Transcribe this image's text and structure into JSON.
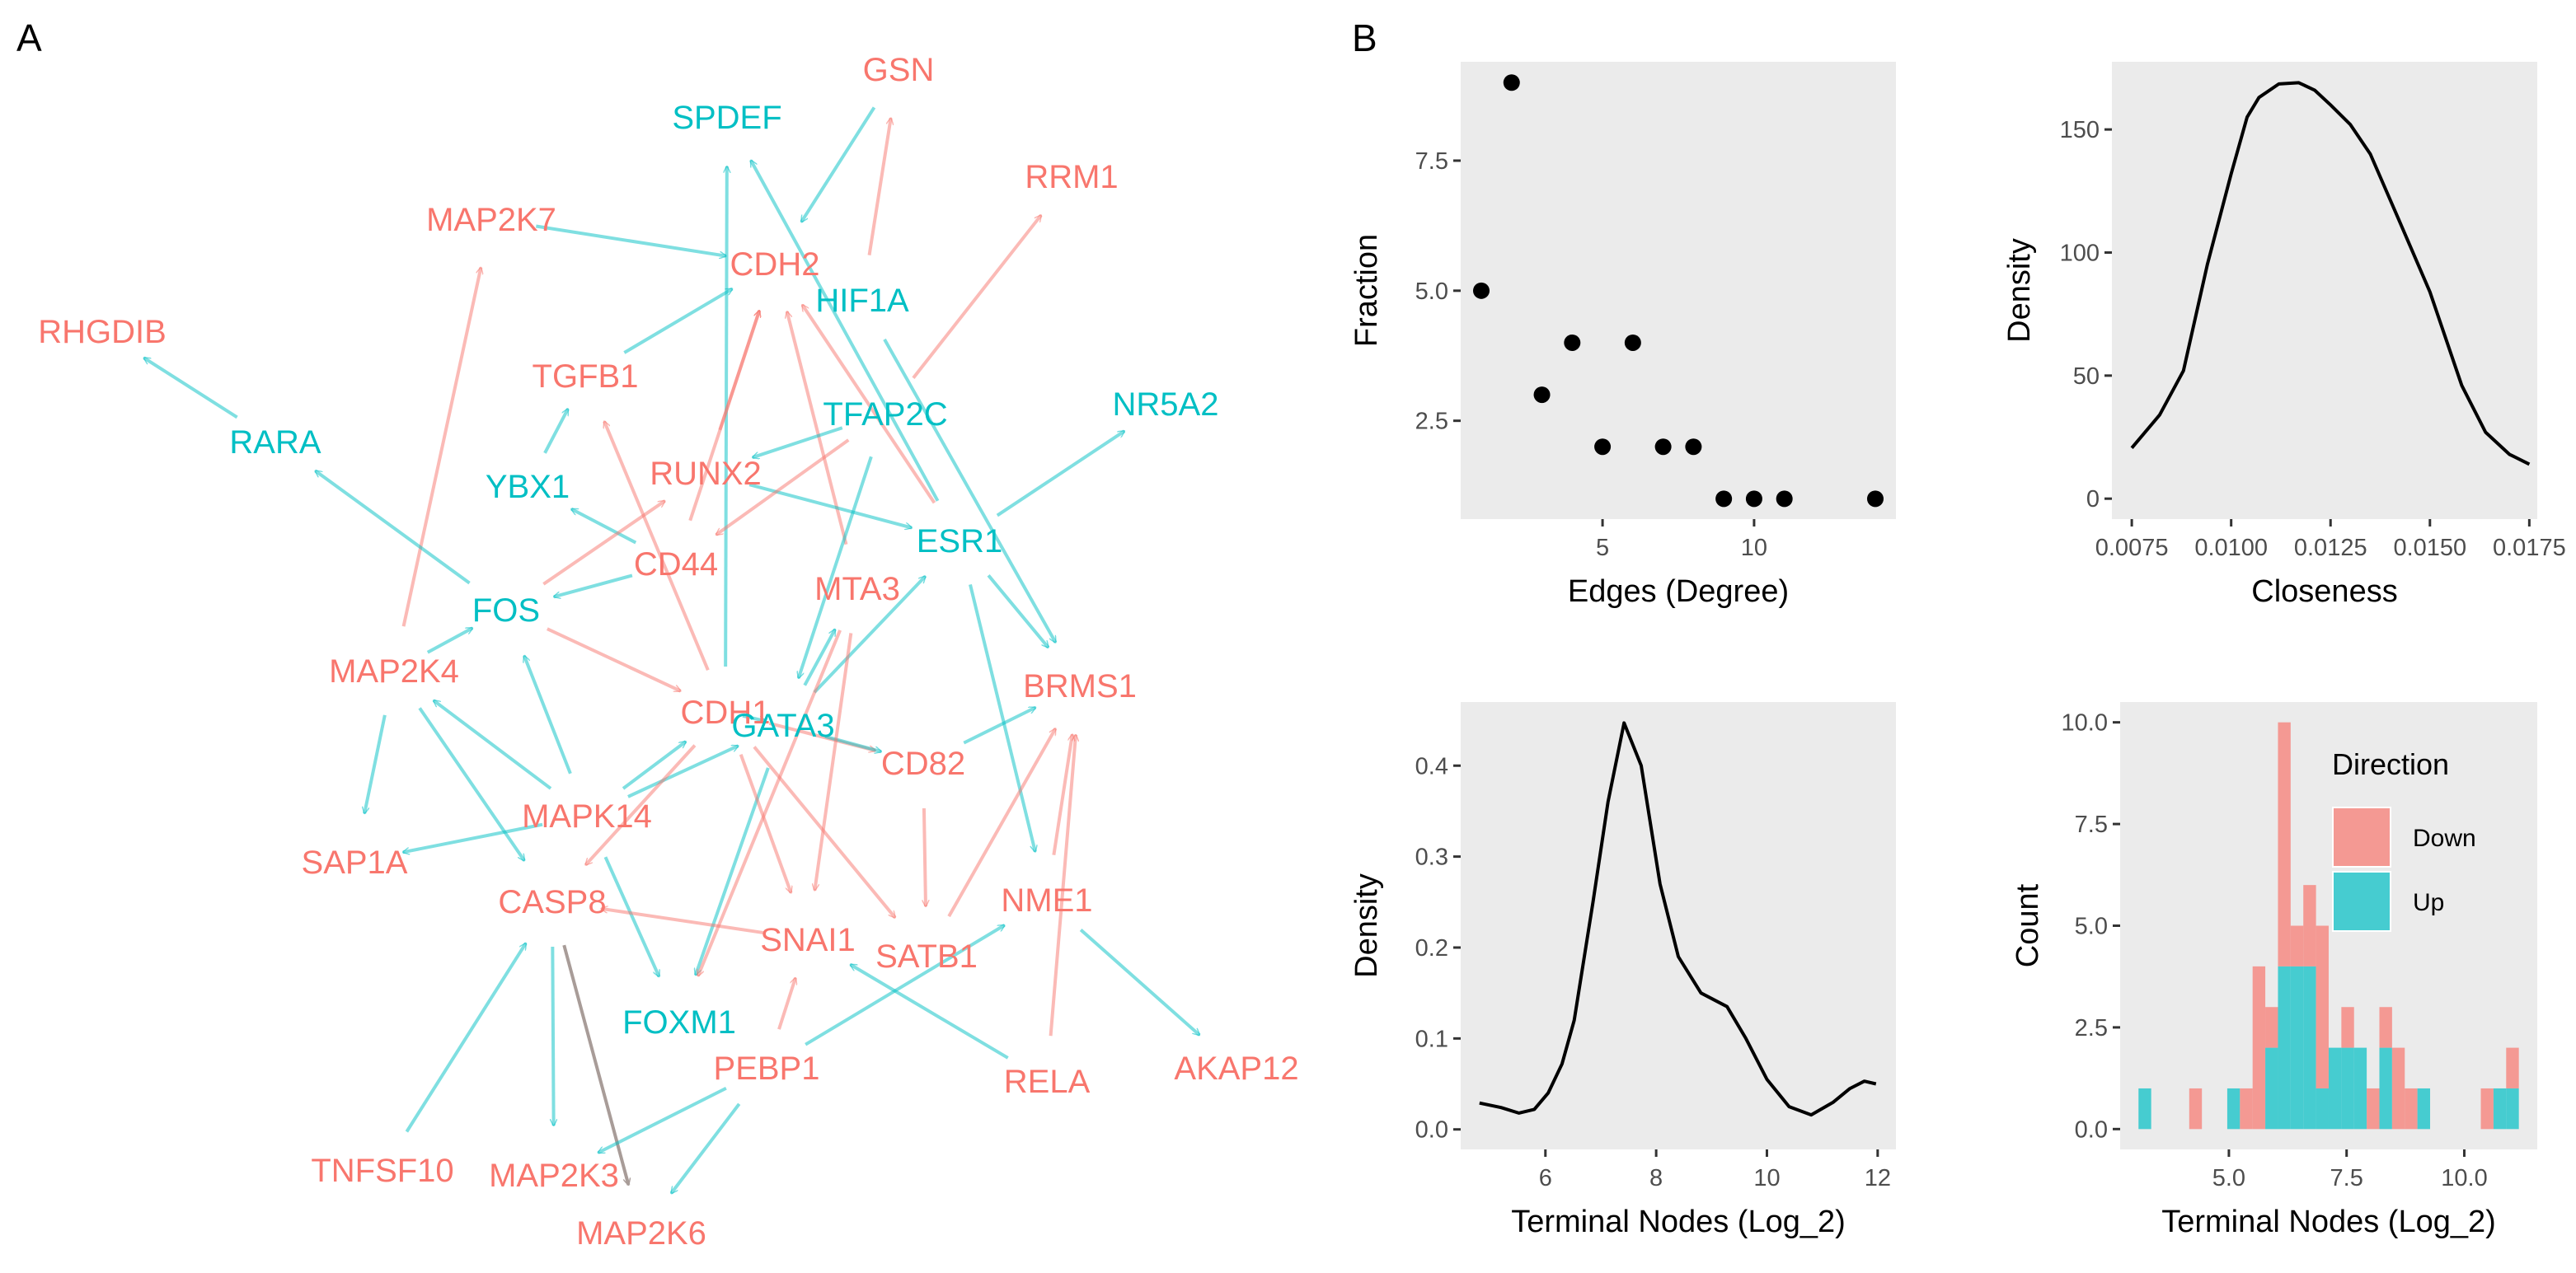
{
  "panel_labels": {
    "a": "A",
    "b": "B"
  },
  "colors": {
    "down": "#F8766D",
    "up": "#00BFC4",
    "mixed": "#A89C98",
    "panel_bg": "#EBEBEB"
  },
  "network": {
    "nodes": [
      {
        "id": "GSN",
        "dir": "down"
      },
      {
        "id": "SPDEF",
        "dir": "up"
      },
      {
        "id": "RRM1",
        "dir": "down"
      },
      {
        "id": "MAP2K7",
        "dir": "down"
      },
      {
        "id": "CDH2",
        "dir": "down"
      },
      {
        "id": "HIF1A",
        "dir": "up"
      },
      {
        "id": "RHGDIB",
        "dir": "down"
      },
      {
        "id": "TGFB1",
        "dir": "down"
      },
      {
        "id": "TFAP2C",
        "dir": "up"
      },
      {
        "id": "NR5A2",
        "dir": "up"
      },
      {
        "id": "RARA",
        "dir": "up"
      },
      {
        "id": "YBX1",
        "dir": "up"
      },
      {
        "id": "RUNX2",
        "dir": "down"
      },
      {
        "id": "ESR1",
        "dir": "up"
      },
      {
        "id": "FOS",
        "dir": "up"
      },
      {
        "id": "CD44",
        "dir": "down"
      },
      {
        "id": "MTA3",
        "dir": "down"
      },
      {
        "id": "MAP2K4",
        "dir": "down"
      },
      {
        "id": "CDH1",
        "dir": "down"
      },
      {
        "id": "GATA3",
        "dir": "up"
      },
      {
        "id": "BRMS1",
        "dir": "down"
      },
      {
        "id": "CD82",
        "dir": "down"
      },
      {
        "id": "MAPK14",
        "dir": "down"
      },
      {
        "id": "SAP1A",
        "dir": "down"
      },
      {
        "id": "CASP8",
        "dir": "down"
      },
      {
        "id": "NME1",
        "dir": "down"
      },
      {
        "id": "SNAI1",
        "dir": "down"
      },
      {
        "id": "SATB1",
        "dir": "down"
      },
      {
        "id": "FOXM1",
        "dir": "up"
      },
      {
        "id": "PEBP1",
        "dir": "down"
      },
      {
        "id": "RELA",
        "dir": "down"
      },
      {
        "id": "AKAP12",
        "dir": "down"
      },
      {
        "id": "TNFSF10",
        "dir": "down"
      },
      {
        "id": "MAP2K3",
        "dir": "down"
      },
      {
        "id": "MAP2K6",
        "dir": "down"
      }
    ],
    "edges": [
      {
        "from": "GSN",
        "to": "CDH2",
        "dir": "up"
      },
      {
        "from": "MAP2K7",
        "to": "CDH2",
        "dir": "up"
      },
      {
        "from": "ESR1",
        "to": "SPDEF",
        "dir": "up"
      },
      {
        "from": "CDH1",
        "to": "SPDEF",
        "dir": "up"
      },
      {
        "from": "TGFB1",
        "to": "CDH2",
        "dir": "up"
      },
      {
        "from": "HIF1A",
        "to": "GSN",
        "dir": "down"
      },
      {
        "from": "TFAP2C",
        "to": "RRM1",
        "dir": "down"
      },
      {
        "from": "MAP2K4",
        "to": "MAP2K7",
        "dir": "down"
      },
      {
        "from": "RARA",
        "to": "RHGDIB",
        "dir": "up"
      },
      {
        "from": "FOS",
        "to": "RARA",
        "dir": "up"
      },
      {
        "from": "RUNX2",
        "to": "CDH2",
        "dir": "down"
      },
      {
        "from": "CD44",
        "to": "CDH2",
        "dir": "down"
      },
      {
        "from": "MTA3",
        "to": "CDH2",
        "dir": "down"
      },
      {
        "from": "ESR1",
        "to": "CDH2",
        "dir": "down"
      },
      {
        "from": "TFAP2C",
        "to": "RUNX2",
        "dir": "up"
      },
      {
        "from": "RUNX2",
        "to": "ESR1",
        "dir": "up"
      },
      {
        "from": "TFAP2C",
        "to": "CD44",
        "dir": "down"
      },
      {
        "from": "ESR1",
        "to": "NR5A2",
        "dir": "up"
      },
      {
        "from": "YBX1",
        "to": "TGFB1",
        "dir": "up"
      },
      {
        "from": "CD44",
        "to": "YBX1",
        "dir": "up"
      },
      {
        "from": "CD44",
        "to": "FOS",
        "dir": "up"
      },
      {
        "from": "FOS",
        "to": "RUNX2",
        "dir": "down"
      },
      {
        "from": "CDH1",
        "to": "TGFB1",
        "dir": "down"
      },
      {
        "from": "FOS",
        "to": "CDH1",
        "dir": "down"
      },
      {
        "from": "ESR1",
        "to": "BRMS1",
        "dir": "up"
      },
      {
        "from": "HIF1A",
        "to": "BRMS1",
        "dir": "up"
      },
      {
        "from": "CDH1",
        "to": "CD82",
        "dir": "down"
      },
      {
        "from": "GATA3",
        "to": "CD82",
        "dir": "up"
      },
      {
        "from": "CD82",
        "to": "BRMS1",
        "dir": "up"
      },
      {
        "from": "ESR1",
        "to": "NME1",
        "dir": "up"
      },
      {
        "from": "MAPK14",
        "to": "FOS",
        "dir": "up"
      },
      {
        "from": "MAPK14",
        "to": "MAP2K4",
        "dir": "up"
      },
      {
        "from": "MAP2K4",
        "to": "FOS",
        "dir": "up"
      },
      {
        "from": "MAP2K4",
        "to": "SAP1A",
        "dir": "up"
      },
      {
        "from": "MAPK14",
        "to": "SAP1A",
        "dir": "up"
      },
      {
        "from": "MAP2K4",
        "to": "CASP8",
        "dir": "up"
      },
      {
        "from": "MAPK14",
        "to": "CDH1",
        "dir": "up"
      },
      {
        "from": "MAPK14",
        "to": "GATA3",
        "dir": "up"
      },
      {
        "from": "GATA3",
        "to": "MTA3",
        "dir": "up"
      },
      {
        "from": "GATA3",
        "to": "ESR1",
        "dir": "up"
      },
      {
        "from": "TFAP2C",
        "to": "GATA3",
        "dir": "up"
      },
      {
        "from": "CDH1",
        "to": "GATA3",
        "dir": "up"
      },
      {
        "from": "GATA3",
        "to": "FOXM1",
        "dir": "up"
      },
      {
        "from": "CASP8",
        "to": "MAP2K3",
        "dir": "up"
      },
      {
        "from": "CASP8",
        "to": "MAP2K6",
        "dir": "mixed"
      },
      {
        "from": "MAPK14",
        "to": "FOXM1",
        "dir": "up"
      },
      {
        "from": "CDH1",
        "to": "SNAI1",
        "dir": "down"
      },
      {
        "from": "CDH1",
        "to": "SATB1",
        "dir": "down"
      },
      {
        "from": "CDH1",
        "to": "CASP8",
        "dir": "down"
      },
      {
        "from": "MTA3",
        "to": "SNAI1",
        "dir": "down"
      },
      {
        "from": "SNAI1",
        "to": "CASP8",
        "dir": "down"
      },
      {
        "from": "CD82",
        "to": "SATB1",
        "dir": "down"
      },
      {
        "from": "SATB1",
        "to": "BRMS1",
        "dir": "down"
      },
      {
        "from": "RELA",
        "to": "BRMS1",
        "dir": "down"
      },
      {
        "from": "NME1",
        "to": "BRMS1",
        "dir": "down"
      },
      {
        "from": "PEBP1",
        "to": "NME1",
        "dir": "up"
      },
      {
        "from": "RELA",
        "to": "SNAI1",
        "dir": "up"
      },
      {
        "from": "NME1",
        "to": "AKAP12",
        "dir": "up"
      },
      {
        "from": "TNFSF10",
        "to": "CASP8",
        "dir": "up"
      },
      {
        "from": "PEBP1",
        "to": "MAP2K3",
        "dir": "up"
      },
      {
        "from": "PEBP1",
        "to": "MAP2K6",
        "dir": "up"
      },
      {
        "from": "PEBP1",
        "to": "SNAI1",
        "dir": "down"
      },
      {
        "from": "MTA3",
        "to": "FOXM1",
        "dir": "down"
      }
    ]
  },
  "chart_data": [
    {
      "id": "degree",
      "type": "scatter",
      "xlabel": "Edges (Degree)",
      "ylabel": "Fraction",
      "x": [
        1,
        2,
        3,
        4,
        5,
        6,
        7,
        8,
        9,
        10,
        11,
        14
      ],
      "y": [
        5,
        9,
        3,
        4,
        2,
        4,
        2,
        2,
        1,
        1,
        1,
        1
      ],
      "xlim": [
        0.32,
        14.68
      ],
      "ylim": [
        0.61,
        9.4
      ],
      "xticks": [
        5,
        10
      ],
      "xtick_labels": [
        "5",
        "10"
      ],
      "yticks": [
        2.5,
        5.0,
        7.5
      ],
      "ytick_labels": [
        "2.5",
        "5.0",
        "7.5"
      ],
      "grid": false
    },
    {
      "id": "closeness",
      "type": "line",
      "xlabel": "Closeness",
      "ylabel": "Density",
      "x": [
        0.0075,
        0.0082,
        0.0088,
        0.0094,
        0.01,
        0.0104,
        0.0107,
        0.0112,
        0.0117,
        0.0121,
        0.0125,
        0.013,
        0.0135,
        0.0142,
        0.015,
        0.0158,
        0.0164,
        0.017,
        0.0175
      ],
      "y": [
        20.6,
        34,
        52,
        95,
        132,
        155,
        163,
        168.5,
        169,
        166,
        160,
        152,
        140,
        114,
        84,
        46,
        27,
        18,
        14
      ],
      "xlim": [
        0.007,
        0.0177
      ],
      "ylim": [
        -8.3,
        177.5
      ],
      "xticks": [
        0.0075,
        0.01,
        0.0125,
        0.015,
        0.0175
      ],
      "xtick_labels": [
        "0.0075",
        "0.0100",
        "0.0125",
        "0.0150",
        "0.0175"
      ],
      "yticks": [
        0,
        50,
        100,
        150
      ],
      "ytick_labels": [
        "0",
        "50",
        "100",
        "150"
      ],
      "grid": false
    },
    {
      "id": "terminal-density",
      "type": "line",
      "xlabel": "Terminal Nodes (Log_2)",
      "ylabel": "Density",
      "x": [
        4.81,
        5.2,
        5.52,
        5.8,
        6.05,
        6.3,
        6.52,
        6.86,
        7.13,
        7.42,
        7.73,
        8.07,
        8.4,
        8.81,
        9.28,
        9.62,
        10.0,
        10.4,
        10.8,
        11.2,
        11.5,
        11.76,
        11.97
      ],
      "y": [
        0.029,
        0.024,
        0.018,
        0.022,
        0.04,
        0.072,
        0.12,
        0.25,
        0.36,
        0.447,
        0.4,
        0.27,
        0.19,
        0.15,
        0.135,
        0.1,
        0.055,
        0.025,
        0.016,
        0.03,
        0.045,
        0.053,
        0.05
      ],
      "xlim": [
        4.47,
        12.33
      ],
      "ylim": [
        -0.022,
        0.47
      ],
      "xticks": [
        6,
        8,
        10,
        12
      ],
      "xtick_labels": [
        "6",
        "8",
        "10",
        "12"
      ],
      "yticks": [
        0.0,
        0.1,
        0.2,
        0.3,
        0.4
      ],
      "ytick_labels": [
        "0.0",
        "0.1",
        "0.2",
        "0.3",
        "0.4"
      ],
      "grid": false
    },
    {
      "id": "terminal-histogram",
      "type": "bar",
      "stacked": true,
      "xlabel": "Terminal Nodes (Log_2)",
      "ylabel": "Count",
      "bin_start": 3.08,
      "binwidth": 0.2693,
      "series": [
        {
          "name": "Down",
          "values": [
            0,
            0,
            0,
            0,
            1,
            0,
            0,
            0,
            1,
            4,
            1,
            6,
            1,
            2,
            4,
            0,
            1,
            0,
            1,
            1,
            2,
            1,
            0,
            0,
            0,
            0,
            0,
            1,
            0,
            1
          ]
        },
        {
          "name": "Up",
          "values": [
            1,
            0,
            0,
            0,
            0,
            0,
            0,
            1,
            0,
            0,
            2,
            4,
            4,
            4,
            1,
            2,
            2,
            2,
            0,
            2,
            0,
            0,
            1,
            0,
            0,
            0,
            0,
            0,
            1,
            1
          ]
        }
      ],
      "xlim": [
        2.69,
        11.55
      ],
      "ylim": [
        -0.5,
        10.5
      ],
      "xticks": [
        5.0,
        7.5,
        10.0
      ],
      "xtick_labels": [
        "5.0",
        "7.5",
        "10.0"
      ],
      "yticks": [
        0.0,
        2.5,
        5.0,
        7.5,
        10.0
      ],
      "ytick_labels": [
        "0.0",
        "2.5",
        "5.0",
        "7.5",
        "10.0"
      ],
      "legend": {
        "title": "Direction",
        "entries": [
          "Down",
          "Up"
        ],
        "placement": "top-right"
      },
      "grid": false
    }
  ]
}
